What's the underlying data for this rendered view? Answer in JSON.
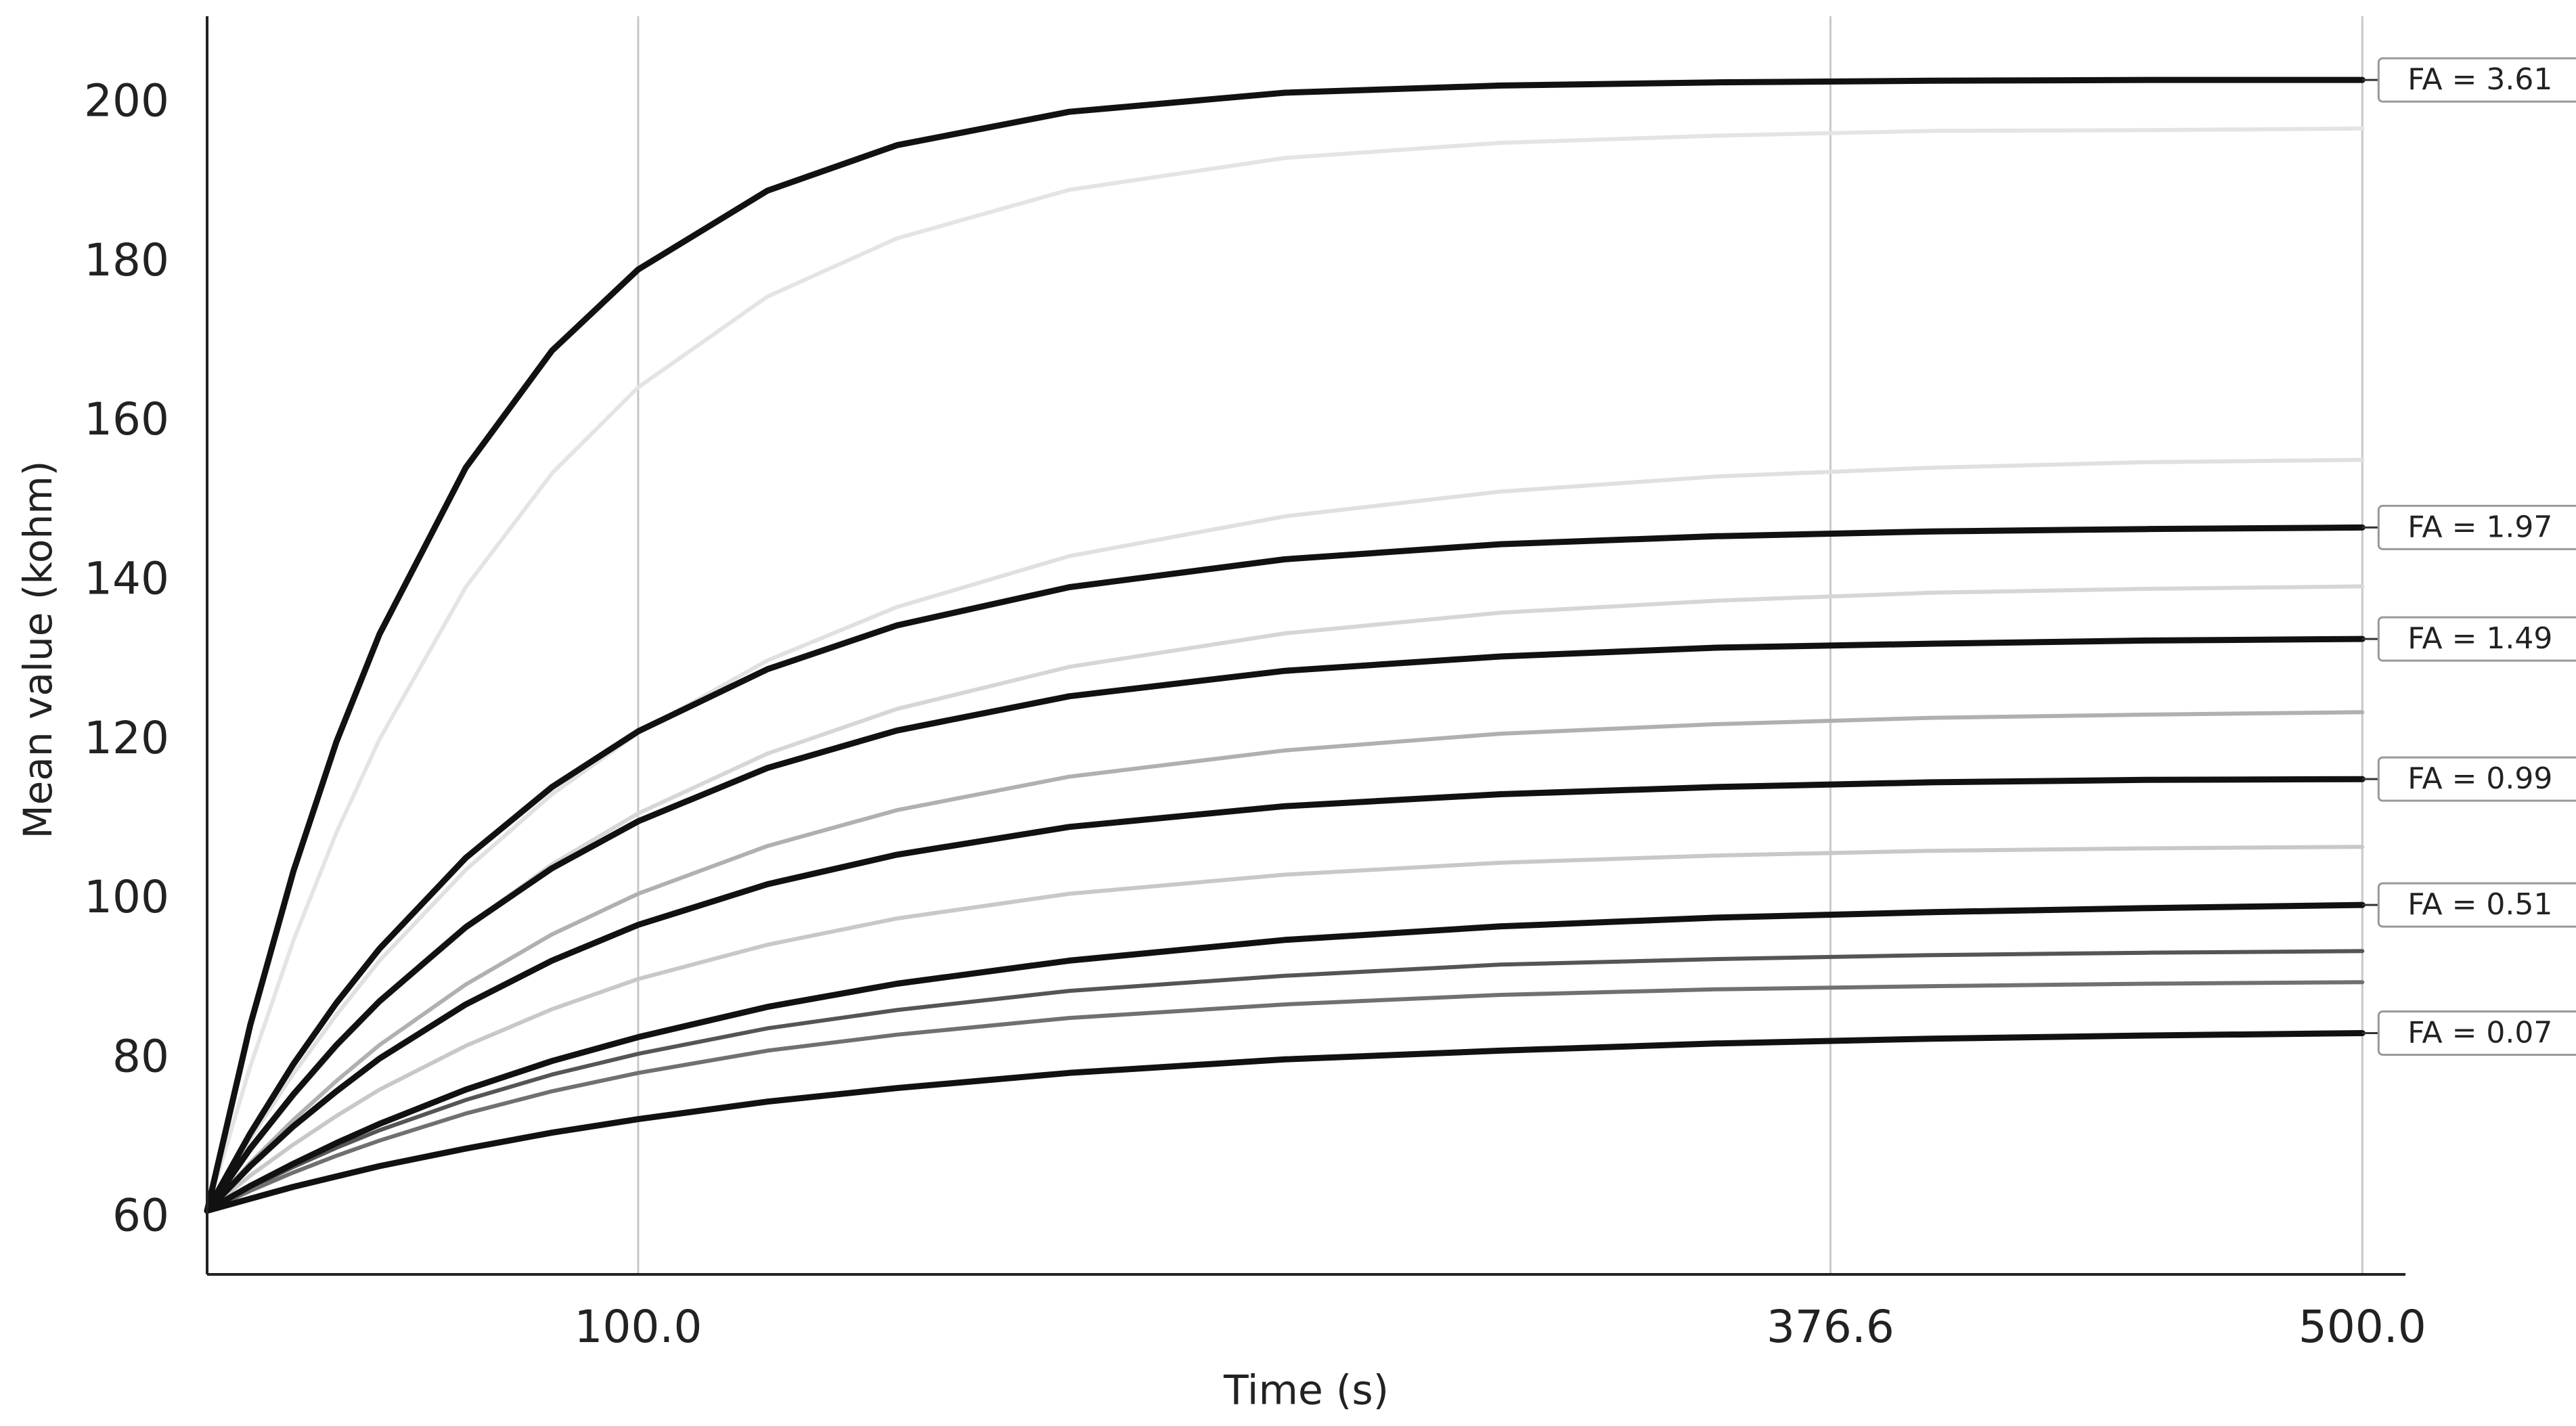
{
  "chart_data": {
    "type": "line",
    "x_label": "Time (s)",
    "y_label": "Mean value (kohm)",
    "x": [
      0,
      10,
      20,
      30,
      40,
      60,
      80,
      100,
      130,
      160,
      200,
      250,
      300,
      350,
      400,
      450,
      500
    ],
    "xlim": [
      0,
      510
    ],
    "ylim": [
      53,
      211
    ],
    "xticks": [
      {
        "value": 100,
        "label": "100.0"
      },
      {
        "value": 376.6,
        "label": "376.6"
      },
      {
        "value": 500,
        "label": "500.0"
      }
    ],
    "yticks": [
      60,
      80,
      100,
      120,
      140,
      160,
      180,
      200
    ],
    "grid": "x",
    "series": [
      {
        "color": "#e4e4e4",
        "values": [
          61,
          79.1,
          94.9,
          108.5,
          120.2,
          139.3,
          153.6,
          164.4,
          175.8,
          183.1,
          189.2,
          193.2,
          195.1,
          196,
          196.6,
          196.7,
          196.9
        ]
      },
      {
        "color": "#e0e0e0",
        "values": [
          61,
          70,
          78.2,
          85.6,
          92.4,
          103.8,
          113.3,
          121,
          130.1,
          136.8,
          143.2,
          148.2,
          151.3,
          153.2,
          154.3,
          155,
          155.3
        ]
      },
      {
        "color": "#d6d6d6",
        "values": [
          61,
          68.5,
          75.3,
          81.5,
          87.1,
          96.6,
          104.5,
          110.9,
          118.4,
          124,
          129.3,
          133.5,
          136.1,
          137.6,
          138.6,
          139.1,
          139.4
        ]
      },
      {
        "color": "#b0b0b0",
        "values": [
          61,
          67,
          72.4,
          77.3,
          81.8,
          89.4,
          95.7,
          100.8,
          106.8,
          111.3,
          115.5,
          118.8,
          120.9,
          122.1,
          122.9,
          123.3,
          123.6
        ]
      },
      {
        "color": "#c8c8c8",
        "values": [
          61,
          65.4,
          69.3,
          72.9,
          76.2,
          81.7,
          86.3,
          90.1,
          94.4,
          97.7,
          100.8,
          103.2,
          104.7,
          105.6,
          106.2,
          106.5,
          106.7
        ]
      },
      {
        "color": "#555555",
        "values": [
          61,
          63.9,
          66.5,
          68.9,
          71.1,
          74.9,
          78.1,
          80.7,
          83.9,
          86.2,
          88.6,
          90.5,
          91.9,
          92.6,
          93.1,
          93.4,
          93.6
        ]
      },
      {
        "color": "#707070",
        "values": [
          61,
          63.5,
          65.8,
          67.9,
          69.8,
          73.2,
          76,
          78.3,
          81.1,
          83.1,
          85.2,
          86.9,
          88.1,
          88.8,
          89.2,
          89.5,
          89.7
        ]
      },
      {
        "name": "FA = 3.61",
        "color": "#111111",
        "values": [
          61,
          84.3,
          103.6,
          119.9,
          133.4,
          154.3,
          169,
          179.2,
          189.1,
          194.8,
          199,
          201.4,
          202.3,
          202.7,
          202.9,
          203,
          203
        ]
      },
      {
        "name": "FA = 1.97",
        "color": "#111111",
        "values": [
          61,
          70.7,
          79.4,
          87.1,
          93.9,
          105.3,
          114.2,
          121.2,
          129,
          134.5,
          139.3,
          142.8,
          144.7,
          145.7,
          146.3,
          146.6,
          146.8
        ]
      },
      {
        "name": "FA = 1.49",
        "color": "#111111",
        "values": [
          61,
          68.8,
          75.6,
          81.8,
          87.3,
          96.6,
          104,
          109.9,
          116.6,
          121.3,
          125.6,
          128.8,
          130.6,
          131.7,
          132.2,
          132.6,
          132.8
        ]
      },
      {
        "name": "FA = 0.99",
        "color": "#111111",
        "values": [
          61,
          66.6,
          71.6,
          76,
          80.1,
          86.9,
          92.4,
          96.9,
          102,
          105.7,
          109.2,
          111.8,
          113.3,
          114.2,
          114.8,
          115.1,
          115.2
        ]
      },
      {
        "name": "FA = 0.51",
        "color": "#111111",
        "values": [
          61,
          64.1,
          66.9,
          69.5,
          71.9,
          76.2,
          79.8,
          82.8,
          86.6,
          89.5,
          92.4,
          95,
          96.7,
          97.8,
          98.5,
          99,
          99.4
        ]
      },
      {
        "name": "FA = 0.07",
        "color": "#111111",
        "values": [
          61,
          62.5,
          64,
          65.3,
          66.6,
          68.8,
          70.8,
          72.5,
          74.7,
          76.4,
          78.3,
          80,
          81.1,
          82,
          82.6,
          83,
          83.3
        ]
      }
    ]
  }
}
